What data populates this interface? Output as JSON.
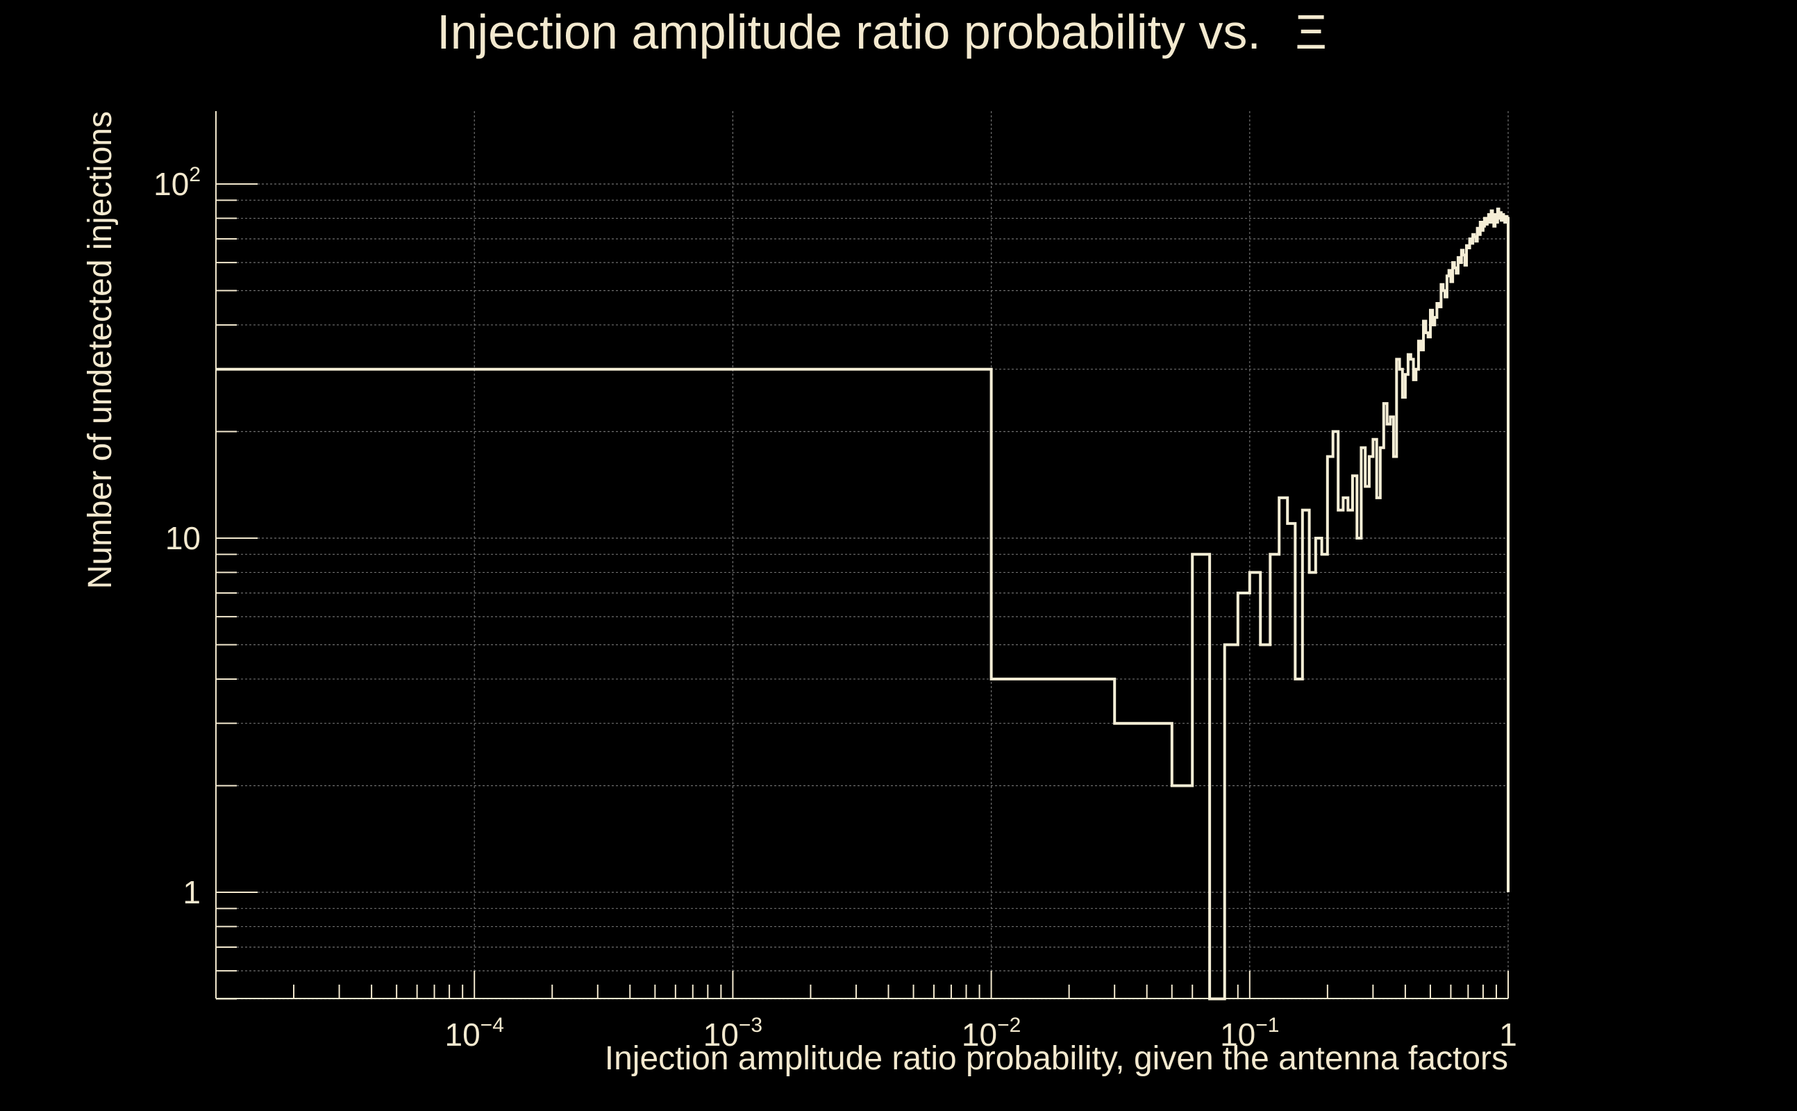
{
  "chart_data": {
    "type": "line",
    "subtype": "step-histogram",
    "title": "Injection amplitude ratio probability vs.",
    "title_symbol": "Ξ",
    "xlabel": "Injection amplitude ratio probability, given the antenna factors",
    "ylabel": "Number of undetected injections",
    "x_scale": "log",
    "y_scale": "log",
    "xlim": [
      1e-05,
      1
    ],
    "ylim": [
      0.5,
      160
    ],
    "grid": true,
    "colors": {
      "background": "#000000",
      "line": "#f5eed6",
      "text": "#f3e9cf",
      "grid": "#6f6f6f"
    },
    "x_ticks": [
      {
        "value": 0.0001,
        "base": "10",
        "exp": "−4"
      },
      {
        "value": 0.001,
        "base": "10",
        "exp": "−3"
      },
      {
        "value": 0.01,
        "base": "10",
        "exp": "−2"
      },
      {
        "value": 0.1,
        "base": "10",
        "exp": "−1"
      },
      {
        "value": 1,
        "base": "1",
        "exp": ""
      }
    ],
    "y_ticks": [
      {
        "value": 1,
        "base": "1",
        "exp": ""
      },
      {
        "value": 10,
        "base": "10",
        "exp": ""
      },
      {
        "value": 100,
        "base": "10",
        "exp": "2"
      }
    ],
    "series": [
      {
        "edges": [
          1e-05,
          0.01,
          0.03,
          0.05,
          0.06,
          0.07,
          0.08,
          0.09,
          0.1,
          0.11,
          0.12,
          0.13,
          0.14,
          0.15,
          0.16,
          0.17,
          0.18,
          0.19,
          0.2,
          0.21,
          0.22,
          0.23,
          0.24,
          0.25,
          0.26,
          0.27,
          0.28,
          0.29,
          0.3,
          0.31,
          0.32,
          0.33,
          0.34,
          0.35,
          0.36,
          0.37,
          0.38,
          0.39,
          0.4,
          0.41,
          0.42,
          0.43,
          0.44,
          0.45,
          0.46,
          0.47,
          0.48,
          0.49,
          0.5,
          0.51,
          0.52,
          0.53,
          0.54,
          0.55,
          0.56,
          0.57,
          0.58,
          0.59,
          0.6,
          0.61,
          0.62,
          0.63,
          0.64,
          0.65,
          0.66,
          0.67,
          0.68,
          0.69,
          0.7,
          0.71,
          0.72,
          0.73,
          0.74,
          0.75,
          0.76,
          0.77,
          0.78,
          0.79,
          0.8,
          0.81,
          0.82,
          0.83,
          0.84,
          0.85,
          0.86,
          0.87,
          0.88,
          0.89,
          0.9,
          0.91,
          0.92,
          0.93,
          0.94,
          0.95,
          0.96,
          0.97,
          0.98,
          0.99,
          1.0
        ],
        "values": [
          30,
          4,
          3,
          2,
          9,
          0.5,
          5,
          7,
          8,
          5,
          9,
          13,
          11,
          4,
          12,
          8,
          10,
          9,
          17,
          20,
          12,
          13,
          12,
          15,
          10,
          18,
          14,
          17,
          19,
          13,
          18,
          24,
          21,
          22,
          17,
          32,
          30,
          25,
          29,
          33,
          32,
          28,
          30,
          36,
          34,
          41,
          38,
          37,
          44,
          40,
          42,
          46,
          45,
          52,
          50,
          48,
          55,
          57,
          53,
          60,
          58,
          56,
          62,
          60,
          65,
          63,
          59,
          67,
          66,
          70,
          68,
          72,
          71,
          69,
          75,
          72,
          78,
          74,
          76,
          80,
          77,
          79,
          82,
          78,
          84,
          80,
          76,
          82,
          78,
          85,
          80,
          83,
          79,
          82,
          80,
          78,
          81,
          80
        ]
      }
    ]
  }
}
